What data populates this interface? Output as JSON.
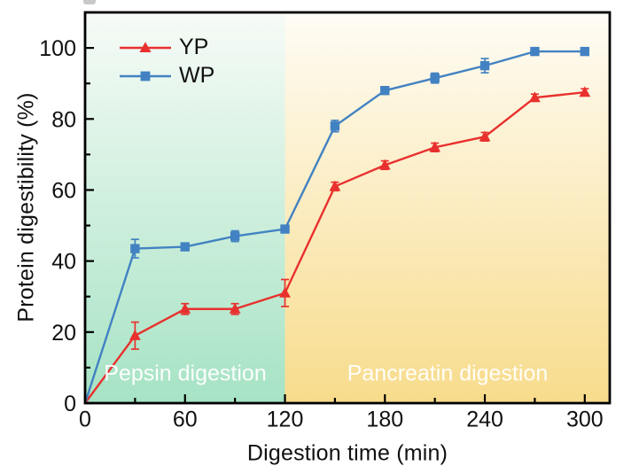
{
  "chart_data": {
    "type": "line",
    "title": "",
    "xlabel": "Digestion time (min)",
    "ylabel": "Protein digestibility (%)",
    "x": [
      0,
      30,
      60,
      90,
      120,
      150,
      180,
      210,
      240,
      270,
      300
    ],
    "series": [
      {
        "name": "YP",
        "color": "#e8312e",
        "marker": "triangle",
        "values": [
          0,
          19,
          26.5,
          26.5,
          31,
          61,
          67,
          72,
          75,
          86,
          87.5
        ],
        "errors": [
          0,
          3.8,
          1.5,
          1.5,
          3.8,
          1.2,
          1.2,
          1.2,
          1.2,
          1,
          1
        ]
      },
      {
        "name": "WP",
        "color": "#4282c2",
        "marker": "square",
        "values": [
          0,
          43.5,
          44,
          47,
          49,
          78,
          88,
          91.5,
          95,
          99,
          99
        ],
        "errors": [
          0,
          2.6,
          0.8,
          1.5,
          0.8,
          1.6,
          1,
          1.4,
          2,
          0.8,
          0.8
        ]
      }
    ],
    "xlim": [
      0,
      315
    ],
    "ylim": [
      0,
      110
    ],
    "x_major_ticks": [
      0,
      60,
      120,
      180,
      240,
      300
    ],
    "x_minor_ticks": [
      30,
      90,
      150,
      210,
      270
    ],
    "y_major_ticks": [
      0,
      20,
      40,
      60,
      80,
      100
    ],
    "y_minor_ticks": [
      10,
      30,
      50,
      70,
      90,
      110
    ],
    "grid": "off",
    "legend_position": "top-left",
    "regions": [
      {
        "label": "Pepsin digestion",
        "x_start": 0,
        "x_end": 120,
        "color_top": "#f7fbf7",
        "color_bottom": "#a6e3c4"
      },
      {
        "label": "Pancreatin digestion",
        "x_start": 120,
        "x_end": 315,
        "color_top": "#fefcf5",
        "color_bottom": "#f8dc8c"
      }
    ],
    "axis_color": "#000000",
    "tick_label_color": "#111111",
    "region_label_color": "#ffffff"
  }
}
